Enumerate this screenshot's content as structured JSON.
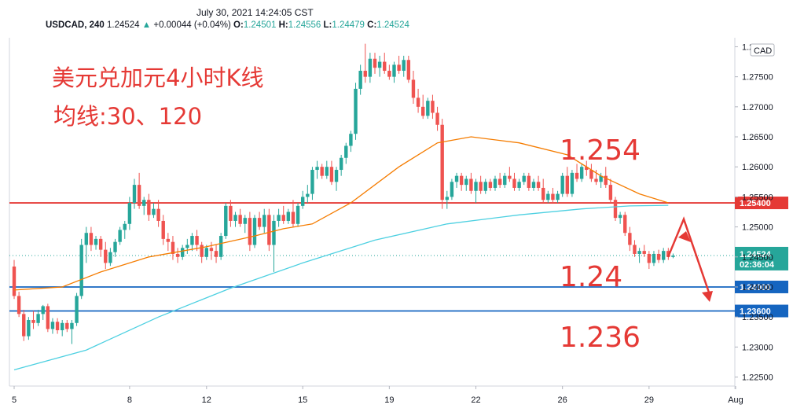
{
  "header": {
    "timestamp": "July 30, 2021 14:24:05 CST",
    "symbol": "USDCAD, 240",
    "last": "1.24524",
    "change": "+0.00044 (+0.04%)",
    "o_label": "O:",
    "o": "1.24501",
    "h_label": "H:",
    "h": "1.24556",
    "l_label": "L:",
    "l": "1.24479",
    "c_label": "C:",
    "c": "1.24524"
  },
  "currency_badge": "CAD",
  "annotations": {
    "title": "美元兑加元4小时K线",
    "subtitle": "均线:30、120",
    "level_1": "1.254",
    "level_2": "1.24",
    "level_3": "1.236"
  },
  "price_tag": {
    "price": "1.24524",
    "countdown": "02:36:04"
  },
  "colors": {
    "up": "#26a69a",
    "down": "#ef5350",
    "ma30": "#f57c00",
    "ma120": "#4dd0e1",
    "resistance_line": "#e53935",
    "support_line": "#1565c0",
    "annotation_text": "#e53935"
  },
  "chart_data": {
    "type": "candlestick",
    "y_range": [
      1.2235,
      1.2815
    ],
    "y_ticks": [
      "1.28000",
      "1.27500",
      "1.27000",
      "1.26500",
      "1.26000",
      "1.25500",
      "1.25000",
      "1.24500",
      "1.24000",
      "1.23500",
      "1.23000",
      "1.22500"
    ],
    "y_tick_values": [
      1.28,
      1.275,
      1.27,
      1.265,
      1.26,
      1.255,
      1.25,
      1.245,
      1.24,
      1.235,
      1.23,
      1.225
    ],
    "x_ticks": [
      {
        "label": "5",
        "bar": 0
      },
      {
        "label": "8",
        "bar": 24
      },
      {
        "label": "12",
        "bar": 40
      },
      {
        "label": "15",
        "bar": 60
      },
      {
        "label": "19",
        "bar": 78
      },
      {
        "label": "22",
        "bar": 96
      },
      {
        "label": "26",
        "bar": 114
      },
      {
        "label": "29",
        "bar": 132
      },
      {
        "label": "Aug",
        "bar": 150
      }
    ],
    "horizontal_levels": [
      {
        "value": 1.254,
        "label": "1.25400",
        "style": "resistance"
      },
      {
        "value": 1.24,
        "label": "1.24000",
        "style": "support"
      },
      {
        "value": 1.236,
        "label": "1.23600",
        "style": "support"
      }
    ],
    "ohlc": [
      [
        1.2434,
        1.2445,
        1.238,
        1.2385
      ],
      [
        1.2385,
        1.2392,
        1.235,
        1.2355
      ],
      [
        1.2355,
        1.2362,
        1.231,
        1.2318
      ],
      [
        1.2318,
        1.235,
        1.2312,
        1.2345
      ],
      [
        1.2345,
        1.236,
        1.233,
        1.234
      ],
      [
        1.234,
        1.2362,
        1.2335,
        1.2355
      ],
      [
        1.2355,
        1.237,
        1.2345,
        1.2368
      ],
      [
        1.2368,
        1.2372,
        1.2325,
        1.233
      ],
      [
        1.233,
        1.2348,
        1.2322,
        1.2342
      ],
      [
        1.2342,
        1.2348,
        1.2322,
        1.2328
      ],
      [
        1.2328,
        1.2345,
        1.2318,
        1.234
      ],
      [
        1.234,
        1.2345,
        1.2325,
        1.233
      ],
      [
        1.233,
        1.2345,
        1.2305,
        1.234
      ],
      [
        1.234,
        1.239,
        1.2335,
        1.2385
      ],
      [
        1.2385,
        1.248,
        1.238,
        1.247
      ],
      [
        1.247,
        1.25,
        1.244,
        1.249
      ],
      [
        1.249,
        1.25,
        1.246,
        1.247
      ],
      [
        1.247,
        1.2485,
        1.2462,
        1.248
      ],
      [
        1.248,
        1.2485,
        1.245,
        1.2462
      ],
      [
        1.2462,
        1.2475,
        1.243,
        1.244
      ],
      [
        1.244,
        1.2465,
        1.2435,
        1.2458
      ],
      [
        1.2458,
        1.248,
        1.245,
        1.2475
      ],
      [
        1.2475,
        1.25,
        1.247,
        1.2495
      ],
      [
        1.2495,
        1.251,
        1.248,
        1.2505
      ],
      [
        1.2505,
        1.255,
        1.2495,
        1.254
      ],
      [
        1.254,
        1.258,
        1.253,
        1.257
      ],
      [
        1.257,
        1.259,
        1.253,
        1.2535
      ],
      [
        1.2535,
        1.255,
        1.252,
        1.2545
      ],
      [
        1.2545,
        1.2555,
        1.251,
        1.252
      ],
      [
        1.252,
        1.254,
        1.2515,
        1.253
      ],
      [
        1.253,
        1.2545,
        1.25,
        1.251
      ],
      [
        1.251,
        1.252,
        1.247,
        1.248
      ],
      [
        1.248,
        1.249,
        1.246,
        1.2475
      ],
      [
        1.2475,
        1.2485,
        1.2445,
        1.2455
      ],
      [
        1.2455,
        1.2465,
        1.244,
        1.245
      ],
      [
        1.245,
        1.247,
        1.2445,
        1.2465
      ],
      [
        1.2465,
        1.248,
        1.2455,
        1.247
      ],
      [
        1.247,
        1.249,
        1.246,
        1.2485
      ],
      [
        1.2485,
        1.2495,
        1.246,
        1.247
      ],
      [
        1.247,
        1.2475,
        1.244,
        1.245
      ],
      [
        1.245,
        1.247,
        1.2445,
        1.2465
      ],
      [
        1.2465,
        1.2475,
        1.2445,
        1.246
      ],
      [
        1.246,
        1.247,
        1.244,
        1.245
      ],
      [
        1.245,
        1.249,
        1.2445,
        1.2485
      ],
      [
        1.2485,
        1.254,
        1.248,
        1.2535
      ],
      [
        1.2535,
        1.2545,
        1.25,
        1.251
      ],
      [
        1.251,
        1.2525,
        1.25,
        1.252
      ],
      [
        1.252,
        1.253,
        1.25,
        1.2505
      ],
      [
        1.2505,
        1.252,
        1.249,
        1.2515
      ],
      [
        1.2515,
        1.2525,
        1.246,
        1.247
      ],
      [
        1.247,
        1.252,
        1.2465,
        1.2515
      ],
      [
        1.2515,
        1.2525,
        1.2495,
        1.25
      ],
      [
        1.25,
        1.253,
        1.249,
        1.252
      ],
      [
        1.252,
        1.253,
        1.246,
        1.247
      ],
      [
        1.247,
        1.252,
        1.2425,
        1.251
      ],
      [
        1.251,
        1.253,
        1.25,
        1.252
      ],
      [
        1.252,
        1.2535,
        1.2505,
        1.251
      ],
      [
        1.251,
        1.253,
        1.2505,
        1.2525
      ],
      [
        1.2525,
        1.2545,
        1.25,
        1.2505
      ],
      [
        1.2505,
        1.254,
        1.25,
        1.2535
      ],
      [
        1.2535,
        1.256,
        1.253,
        1.255
      ],
      [
        1.255,
        1.257,
        1.254,
        1.2555
      ],
      [
        1.2555,
        1.26,
        1.2545,
        1.2595
      ],
      [
        1.2595,
        1.261,
        1.258,
        1.26
      ],
      [
        1.26,
        1.2605,
        1.258,
        1.2585
      ],
      [
        1.2585,
        1.261,
        1.258,
        1.26
      ],
      [
        1.26,
        1.261,
        1.257,
        1.2575
      ],
      [
        1.2575,
        1.26,
        1.256,
        1.2595
      ],
      [
        1.2595,
        1.262,
        1.2585,
        1.2615
      ],
      [
        1.2615,
        1.264,
        1.2605,
        1.2635
      ],
      [
        1.2635,
        1.266,
        1.2625,
        1.2655
      ],
      [
        1.2655,
        1.274,
        1.2645,
        1.273
      ],
      [
        1.273,
        1.277,
        1.272,
        1.276
      ],
      [
        1.276,
        1.2805,
        1.274,
        1.275
      ],
      [
        1.275,
        1.279,
        1.274,
        1.278
      ],
      [
        1.278,
        1.279,
        1.2755,
        1.2765
      ],
      [
        1.2765,
        1.2785,
        1.275,
        1.2775
      ],
      [
        1.2775,
        1.279,
        1.2755,
        1.276
      ],
      [
        1.276,
        1.277,
        1.2745,
        1.275
      ],
      [
        1.275,
        1.2775,
        1.274,
        1.277
      ],
      [
        1.277,
        1.2785,
        1.2755,
        1.276
      ],
      [
        1.276,
        1.2785,
        1.275,
        1.2778
      ],
      [
        1.2778,
        1.2785,
        1.274,
        1.2745
      ],
      [
        1.2745,
        1.276,
        1.2705,
        1.2715
      ],
      [
        1.2715,
        1.273,
        1.269,
        1.27
      ],
      [
        1.27,
        1.272,
        1.268,
        1.2685
      ],
      [
        1.2685,
        1.2715,
        1.268,
        1.271
      ],
      [
        1.271,
        1.272,
        1.268,
        1.269
      ],
      [
        1.269,
        1.27,
        1.266,
        1.267
      ],
      [
        1.267,
        1.268,
        1.253,
        1.2545
      ],
      [
        1.2545,
        1.256,
        1.253,
        1.255
      ],
      [
        1.255,
        1.258,
        1.2545,
        1.2575
      ],
      [
        1.2575,
        1.259,
        1.2565,
        1.2585
      ],
      [
        1.2585,
        1.259,
        1.256,
        1.257
      ],
      [
        1.257,
        1.2585,
        1.256,
        1.258
      ],
      [
        1.258,
        1.259,
        1.2555,
        1.256
      ],
      [
        1.256,
        1.258,
        1.254,
        1.2575
      ],
      [
        1.2575,
        1.2585,
        1.2555,
        1.256
      ],
      [
        1.256,
        1.258,
        1.2555,
        1.2575
      ],
      [
        1.2575,
        1.258,
        1.256,
        1.2565
      ],
      [
        1.2565,
        1.2585,
        1.256,
        1.258
      ],
      [
        1.258,
        1.259,
        1.2565,
        1.257
      ],
      [
        1.257,
        1.259,
        1.2565,
        1.2585
      ],
      [
        1.2585,
        1.26,
        1.2575,
        1.258
      ],
      [
        1.258,
        1.259,
        1.256,
        1.2565
      ],
      [
        1.2565,
        1.258,
        1.256,
        1.2575
      ],
      [
        1.2575,
        1.259,
        1.257,
        1.2585
      ],
      [
        1.2585,
        1.259,
        1.256,
        1.2565
      ],
      [
        1.2565,
        1.258,
        1.256,
        1.2575
      ],
      [
        1.2575,
        1.2585,
        1.256,
        1.2565
      ],
      [
        1.2565,
        1.258,
        1.254,
        1.2545
      ],
      [
        1.2545,
        1.256,
        1.254,
        1.2555
      ],
      [
        1.2555,
        1.2565,
        1.254,
        1.2545
      ],
      [
        1.2545,
        1.256,
        1.254,
        1.2555
      ],
      [
        1.2555,
        1.259,
        1.255,
        1.2585
      ],
      [
        1.2585,
        1.26,
        1.255,
        1.2555
      ],
      [
        1.2555,
        1.2595,
        1.255,
        1.259
      ],
      [
        1.259,
        1.2605,
        1.2575,
        1.258
      ],
      [
        1.258,
        1.2605,
        1.2575,
        1.26
      ],
      [
        1.26,
        1.261,
        1.2585,
        1.2595
      ],
      [
        1.2595,
        1.2605,
        1.2575,
        1.258
      ],
      [
        1.258,
        1.2595,
        1.257,
        1.2575
      ],
      [
        1.2575,
        1.259,
        1.2565,
        1.2585
      ],
      [
        1.2585,
        1.26,
        1.2565,
        1.257
      ],
      [
        1.257,
        1.258,
        1.254,
        1.2545
      ],
      [
        1.2545,
        1.255,
        1.251,
        1.2515
      ],
      [
        1.2515,
        1.2525,
        1.2505,
        1.252
      ],
      [
        1.252,
        1.2525,
        1.2485,
        1.249
      ],
      [
        1.249,
        1.25,
        1.246,
        1.247
      ],
      [
        1.247,
        1.2478,
        1.245,
        1.2455
      ],
      [
        1.2455,
        1.2465,
        1.244,
        1.246
      ],
      [
        1.246,
        1.247,
        1.245,
        1.2455
      ],
      [
        1.2455,
        1.246,
        1.243,
        1.244
      ],
      [
        1.244,
        1.246,
        1.2435,
        1.2455
      ],
      [
        1.2455,
        1.2462,
        1.244,
        1.2445
      ],
      [
        1.2445,
        1.2465,
        1.244,
        1.246
      ],
      [
        1.246,
        1.2465,
        1.2445,
        1.245
      ],
      [
        1.245,
        1.24556,
        1.24479,
        1.24524
      ]
    ],
    "ma30": [
      [
        0,
        1.2395
      ],
      [
        10,
        1.24
      ],
      [
        18,
        1.2425
      ],
      [
        28,
        1.245
      ],
      [
        40,
        1.2467
      ],
      [
        50,
        1.2485
      ],
      [
        56,
        1.2497
      ],
      [
        62,
        1.2505
      ],
      [
        70,
        1.254
      ],
      [
        80,
        1.26
      ],
      [
        88,
        1.264
      ],
      [
        95,
        1.265
      ],
      [
        105,
        1.264
      ],
      [
        115,
        1.262
      ],
      [
        122,
        1.2585
      ],
      [
        130,
        1.2555
      ],
      [
        136,
        1.254
      ]
    ],
    "ma120": [
      [
        0,
        1.2262
      ],
      [
        15,
        1.2295
      ],
      [
        30,
        1.235
      ],
      [
        45,
        1.2398
      ],
      [
        60,
        1.244
      ],
      [
        75,
        1.2478
      ],
      [
        90,
        1.2505
      ],
      [
        105,
        1.252
      ],
      [
        118,
        1.253
      ],
      [
        128,
        1.2535
      ],
      [
        136,
        1.2536
      ]
    ]
  }
}
